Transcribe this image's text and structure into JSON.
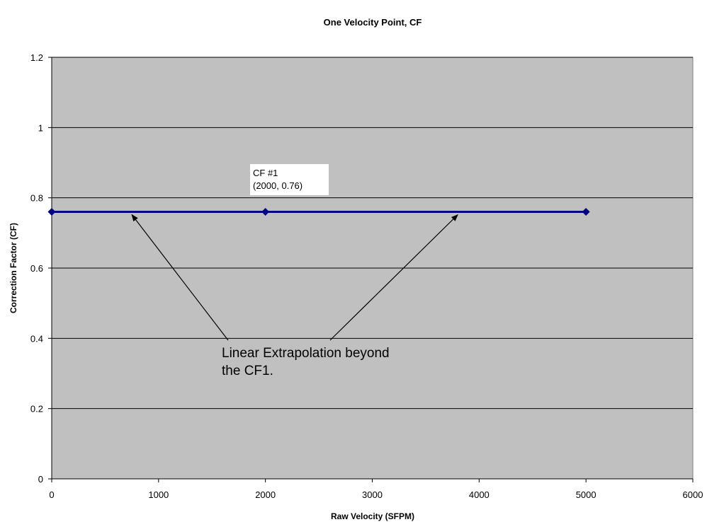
{
  "chart_data": {
    "type": "line",
    "title": "One Velocity Point, CF",
    "xlabel": "Raw Velocity (SFPM)",
    "ylabel": "Correction Factor (CF)",
    "xlim": [
      0,
      6000
    ],
    "ylim": [
      0,
      1.2
    ],
    "xticks": [
      0,
      1000,
      2000,
      3000,
      4000,
      5000,
      6000
    ],
    "yticks": [
      0,
      0.2,
      0.4,
      0.6,
      0.8,
      1,
      1.2
    ],
    "xtick_labels": [
      "0",
      "1000",
      "2000",
      "3000",
      "4000",
      "5000",
      "6000"
    ],
    "ytick_labels": [
      "0",
      "0.2",
      "0.4",
      "0.6",
      "0.8",
      "1",
      "1.2"
    ],
    "grid": "horizontal",
    "plot_background": "#C0C0C0",
    "series": [
      {
        "x": [
          0,
          2000,
          5000
        ],
        "y": [
          0.76,
          0.76,
          0.76
        ],
        "color": "#000080",
        "marker": "diamond"
      }
    ],
    "annotations": {
      "point_label": {
        "lines": [
          "CF #1",
          "(2000, 0.76)"
        ]
      },
      "extrapolation_label": {
        "lines": [
          "Linear Extrapolation beyond",
          "the CF1."
        ],
        "arrow_targets": [
          {
            "x": 750,
            "y": 0.76
          },
          {
            "x": 3800,
            "y": 0.76
          }
        ]
      }
    }
  }
}
